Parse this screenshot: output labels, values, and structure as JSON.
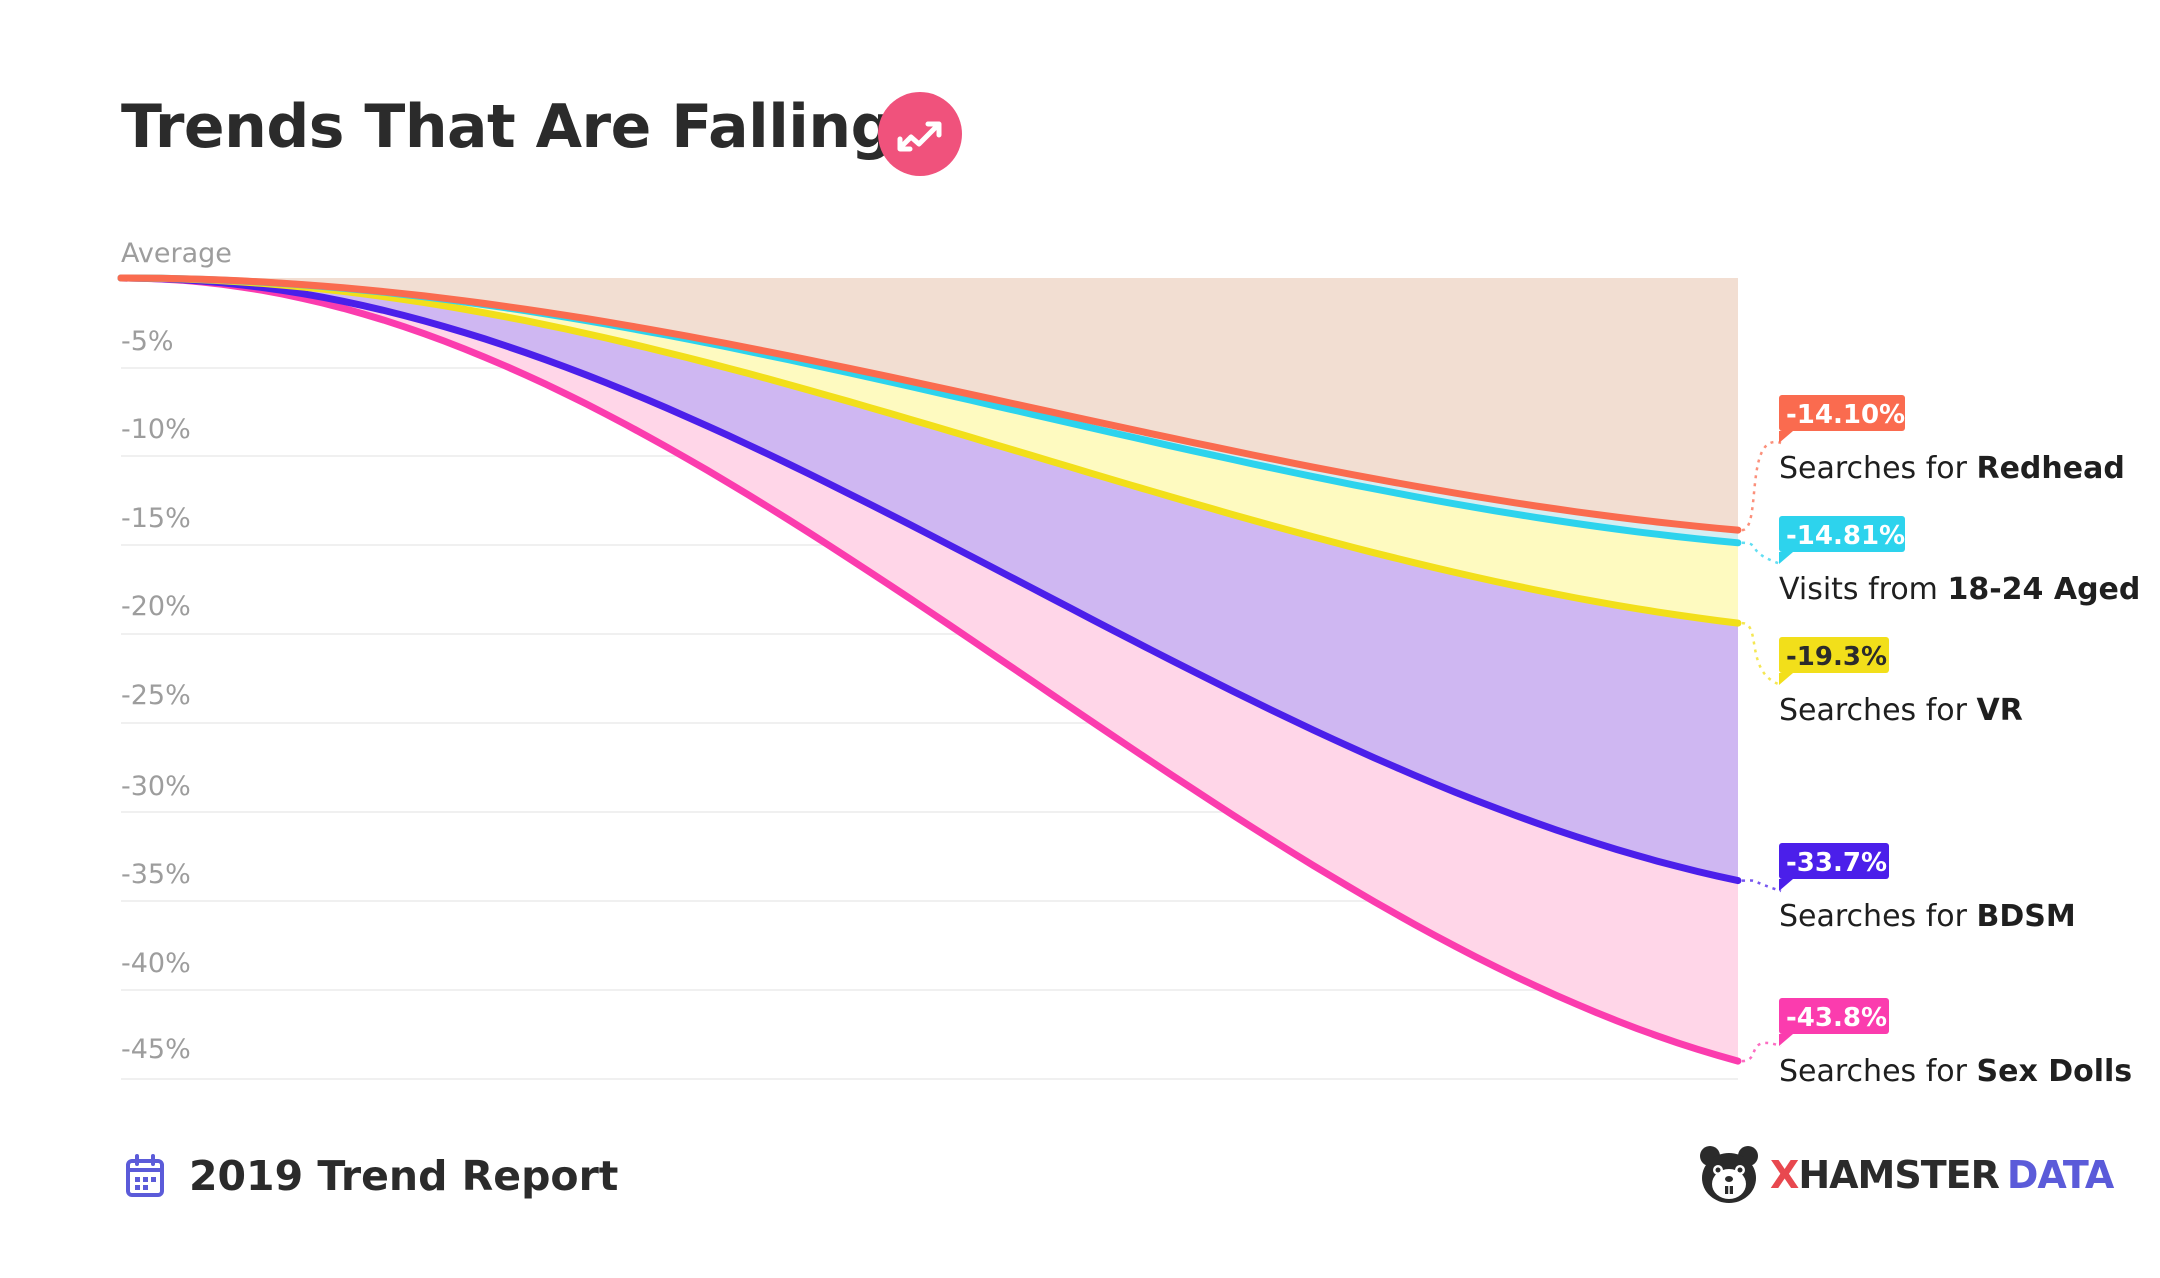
{
  "title": "Trends That Are Falling",
  "footer": {
    "report": "2019 Trend Report"
  },
  "brand": {
    "x": "X",
    "hamster": "HAMSTER",
    "data": "DATA"
  },
  "icons": {
    "title_badge": "trending-down-icon",
    "calendar": "calendar-icon",
    "logo": "hamster-logo-icon"
  },
  "colors": {
    "badge": "#f0527c",
    "grid": "#ececec",
    "tick": "#9d9d9d",
    "top_fill": "#f2ded2"
  },
  "chart_data": {
    "type": "area",
    "title": "Trends That Are Falling",
    "xlabel": "",
    "ylabel": "",
    "ylim": [
      -45,
      0
    ],
    "yticks": [
      "Average",
      "-5%",
      "-10%",
      "-15%",
      "-20%",
      "-25%",
      "-30%",
      "-35%",
      "-40%",
      "-45%"
    ],
    "ytick_values": [
      0,
      -5,
      -10,
      -15,
      -20,
      -25,
      -30,
      -35,
      -40,
      -45
    ],
    "grid": true,
    "legend": "right",
    "series": [
      {
        "label": "-14.10%",
        "prefix": "Searches for ",
        "name": "Redhead",
        "start": 0,
        "end": -14.1,
        "line_color": "#fa6b4f",
        "fill_color": "#f2ded2",
        "badge_text_color": "#ffffff"
      },
      {
        "label": "-14.81%",
        "prefix": "Visits from ",
        "name": "18-24 Aged",
        "start": 0,
        "end": -14.81,
        "line_color": "#2dd3ed",
        "fill_color": "#d5eef2",
        "badge_text_color": "#ffffff"
      },
      {
        "label": "-19.3%",
        "prefix": "Searches for ",
        "name": "VR",
        "start": 0,
        "end": -19.3,
        "line_color": "#f2df1a",
        "fill_color": "#fefac0",
        "badge_text_color": "#2b2b2b"
      },
      {
        "label": "-33.7%",
        "prefix": "Searches for ",
        "name": "BDSM",
        "start": 0,
        "end": -33.7,
        "line_color": "#4b1fea",
        "fill_color": "#cfb7f2",
        "badge_text_color": "#ffffff"
      },
      {
        "label": "-43.8%",
        "prefix": "Searches for ",
        "name": "Sex Dolls",
        "start": 0,
        "end": -43.8,
        "line_color": "#fb3cae",
        "fill_color": "#ffd6e8",
        "badge_text_color": "#ffffff"
      }
    ]
  }
}
